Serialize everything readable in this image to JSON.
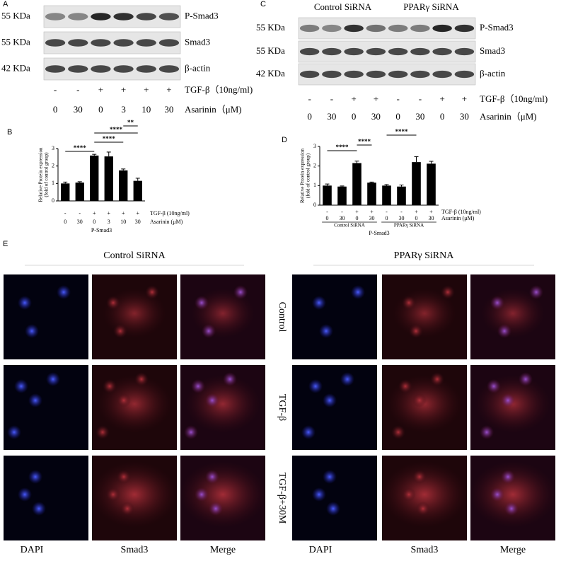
{
  "panel_a": {
    "letter": "A",
    "markers": [
      "55 KDa",
      "55 KDa",
      "42 KDa"
    ],
    "proteins": [
      "P-Smad3",
      "Smad3",
      "β-actin"
    ],
    "treatment_labels": [
      "TGF-β（10ng/ml)",
      "Asarinin（μM)"
    ],
    "tgf": [
      "-",
      "-",
      "+",
      "+",
      "+",
      "+"
    ],
    "asarinin": [
      "0",
      "30",
      "0",
      "3",
      "10",
      "30"
    ]
  },
  "panel_c": {
    "letter": "C",
    "groups": [
      "Control SiRNA",
      "PPARγ SiRNA"
    ],
    "markers": [
      "55 KDa",
      "55 KDa",
      "42 KDa"
    ],
    "proteins": [
      "P-Smad3",
      "Smad3",
      "β-actin"
    ],
    "treatment_labels": [
      "TGF-β（10ng/ml)",
      "Asarinin（μM)"
    ],
    "tgf": [
      "-",
      "-",
      "+",
      "+",
      "-",
      "-",
      "+",
      "+"
    ],
    "asarinin": [
      "0",
      "30",
      "0",
      "30",
      "0",
      "30",
      "0",
      "30"
    ]
  },
  "chart_data": [
    {
      "type": "bar",
      "letter": "B",
      "ylabel": [
        "Relative Protein expression",
        "(fold of control group)"
      ],
      "xlabel": "P-Smad3",
      "row_labels": [
        "TGF-β (10ng/ml)",
        "Asarinin (μM)"
      ],
      "tgf_row": [
        "-",
        "-",
        "+",
        "+",
        "+",
        "+"
      ],
      "categories": [
        "0",
        "30",
        "0",
        "3",
        "10",
        "30"
      ],
      "values": [
        1.0,
        1.05,
        2.6,
        2.55,
        1.75,
        1.15
      ],
      "errors": [
        0.08,
        0.05,
        0.07,
        0.25,
        0.08,
        0.15
      ],
      "significance": [
        "****",
        "****",
        "****",
        "**"
      ],
      "color": "#000000",
      "ylim": [
        0,
        3
      ],
      "yticks": [
        0,
        1,
        2,
        3
      ]
    },
    {
      "type": "bar",
      "letter": "D",
      "ylabel": [
        "Relative Protein expression",
        "(fold of control group)"
      ],
      "xlabel": "P-Smad3",
      "row_labels": [
        "TGF-β (10ng/ml)",
        "Asarinin (μM)"
      ],
      "tgf_row": [
        "-",
        "-",
        "+",
        "+",
        "-",
        "-",
        "+",
        "+"
      ],
      "categories": [
        "0",
        "30",
        "0",
        "30",
        "0",
        "30",
        "0",
        "30"
      ],
      "groups": [
        "Control SiRNA",
        "PPARγ SiRNA"
      ],
      "values": [
        1.0,
        0.95,
        2.15,
        1.15,
        1.0,
        0.95,
        2.2,
        2.12
      ],
      "errors": [
        0.08,
        0.03,
        0.1,
        0.03,
        0.05,
        0.08,
        0.28,
        0.12
      ],
      "significance": [
        "****",
        "****",
        "****"
      ],
      "color": "#000000",
      "ylim": [
        0,
        3
      ],
      "yticks": [
        0,
        1,
        2,
        3
      ]
    }
  ],
  "panel_e": {
    "letter": "E",
    "groups": [
      "Control SiRNA",
      "PPARγ SiRNA"
    ],
    "rows": [
      "Control",
      "TGF-β",
      "TGF-β+30M"
    ],
    "columns": [
      "DAPI",
      "Smad3",
      "Merge"
    ]
  }
}
